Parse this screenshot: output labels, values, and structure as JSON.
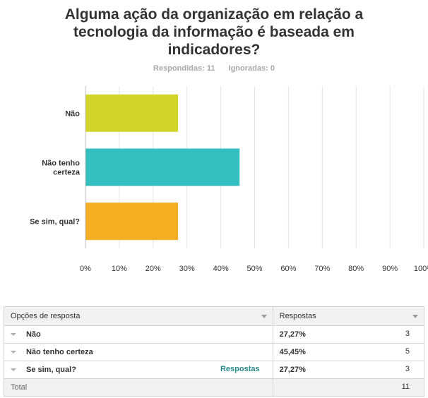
{
  "question": {
    "title_lines": [
      "Alguma ação da organização em relação a",
      "tecnologia da informação é baseada em",
      "indicadores?"
    ],
    "answered": "Respondidas: 11",
    "skipped": "Ignoradas: 0"
  },
  "chart_data": {
    "type": "bar",
    "orientation": "horizontal",
    "title": "Alguma ação da organização em relação a tecnologia da informação é baseada em indicadores?",
    "categories": [
      [
        "Não"
      ],
      [
        "Não tenho",
        "certeza"
      ],
      [
        "Se sim, qual?"
      ]
    ],
    "values": [
      27.27,
      45.45,
      27.27
    ],
    "colors": [
      "#d1d42a",
      "#33bfbf",
      "#f4ae22"
    ],
    "xlim": [
      0,
      100
    ],
    "ticks": [
      "0%",
      "10%",
      "20%",
      "30%",
      "40%",
      "50%",
      "60%",
      "70%",
      "80%",
      "90%",
      "100%"
    ],
    "grid": true
  },
  "table": {
    "header_option": "Opções de resposta",
    "header_responses": "Respostas",
    "rows": [
      {
        "label": "Não",
        "pct": "27,27%",
        "count": "3"
      },
      {
        "label": "Não tenho certeza",
        "pct": "45,45%",
        "count": "5"
      },
      {
        "label": "Se sim, qual?",
        "pct": "27,27%",
        "count": "3",
        "link": "Respostas"
      }
    ],
    "total_label": "Total",
    "total_count": "11"
  }
}
